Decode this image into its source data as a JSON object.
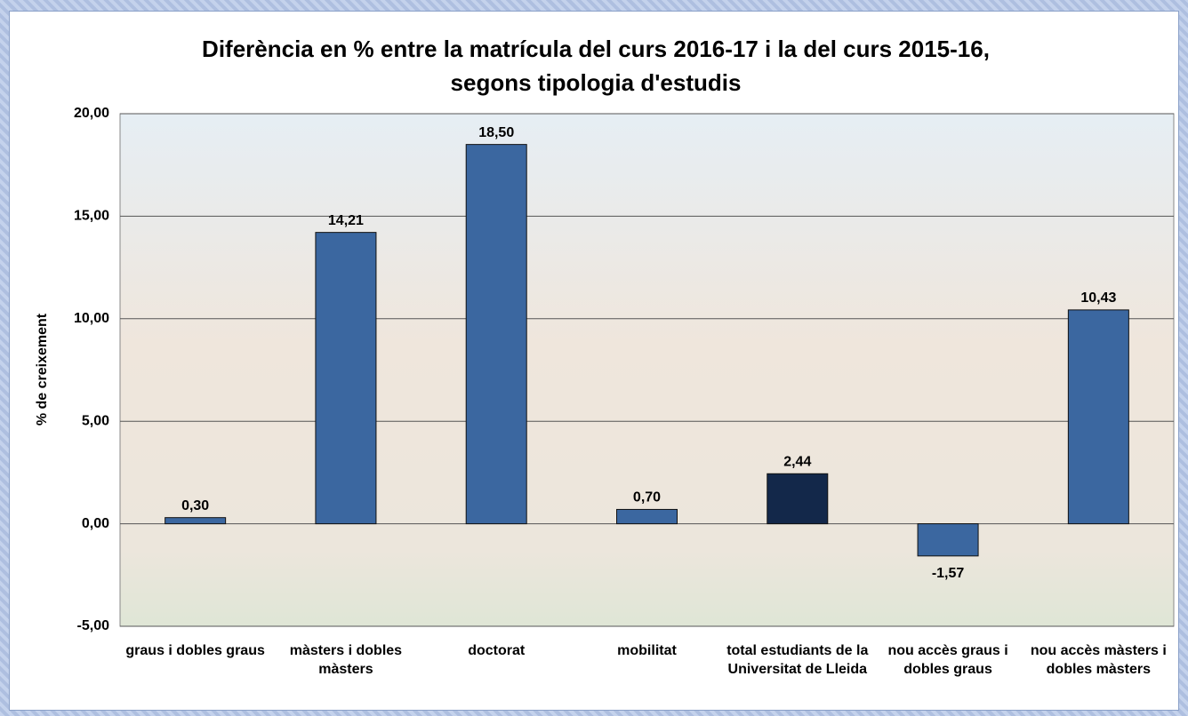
{
  "chart_data": {
    "type": "bar",
    "title": "Diferència en % entre la matrícula del curs 2016-17 i la del curs 2015-16, segons tipologia d'estudis",
    "y_label": "% de creixement",
    "categories": [
      "graus i dobles graus",
      "màsters i dobles màsters",
      "doctorat",
      "mobilitat",
      "total estudiants de la Universitat de Lleida",
      "nou accès graus i dobles graus",
      "nou accès màsters i dobles màsters"
    ],
    "values": [
      0.3,
      14.21,
      18.5,
      0.7,
      2.44,
      -1.57,
      10.43
    ],
    "value_labels": [
      "0,30",
      "14,21",
      "18,50",
      "0,70",
      "2,44",
      "-1,57",
      "10,43"
    ],
    "colors": [
      "#3b67a0",
      "#3b67a0",
      "#3b67a0",
      "#3b67a0",
      "#13284a",
      "#3b67a0",
      "#3b67a0"
    ],
    "ylim": [
      -5,
      20
    ],
    "yticks": [
      {
        "value": -5,
        "label": "-5,00"
      },
      {
        "value": 0,
        "label": "0,00"
      },
      {
        "value": 5,
        "label": "5,00"
      },
      {
        "value": 10,
        "label": "10,00"
      },
      {
        "value": 15,
        "label": "15,00"
      },
      {
        "value": 20,
        "label": "20,00"
      }
    ],
    "grid": true
  }
}
